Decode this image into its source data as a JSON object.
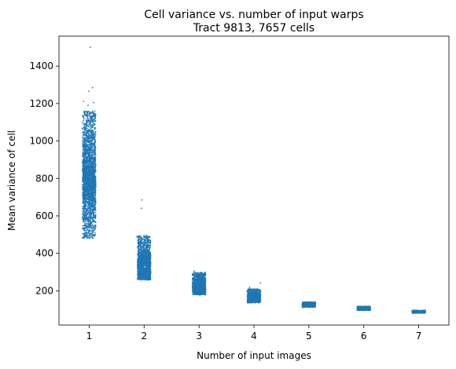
{
  "chart_data": {
    "type": "scatter",
    "title": "Cell variance vs. number of input warps",
    "subtitle": "Tract 9813, 7657 cells",
    "xlabel": "Number of input images",
    "ylabel": "Mean variance of cell",
    "x_categories": [
      "1",
      "2",
      "3",
      "4",
      "5",
      "6",
      "7"
    ],
    "x_range": [
      0.45,
      7.55
    ],
    "y_range": [
      17,
      1560
    ],
    "y_ticks": [
      200,
      400,
      600,
      800,
      1000,
      1200,
      1400
    ],
    "grid": false,
    "legend": "none",
    "point_color": "#1f77b4",
    "strip_jitter": 0.12,
    "groups": [
      {
        "x": 1,
        "count": 2450,
        "y_min": 480,
        "y_max": 1160,
        "y_center": 790,
        "y_spread": 110
      },
      {
        "x": 2,
        "count": 1550,
        "y_min": 258,
        "y_max": 495,
        "y_center": 330,
        "y_spread": 45
      },
      {
        "x": 3,
        "count": 1150,
        "y_min": 178,
        "y_max": 298,
        "y_center": 220,
        "y_spread": 25
      },
      {
        "x": 4,
        "count": 950,
        "y_min": 135,
        "y_max": 210,
        "y_center": 160,
        "y_spread": 12
      },
      {
        "x": 5,
        "count": 650,
        "y_min": 112,
        "y_max": 140,
        "y_center": 125,
        "y_spread": 5
      },
      {
        "x": 6,
        "count": 500,
        "y_min": 95,
        "y_max": 117,
        "y_center": 104,
        "y_spread": 4
      },
      {
        "x": 7,
        "count": 407,
        "y_min": 80,
        "y_max": 96,
        "y_center": 88,
        "y_spread": 3
      }
    ],
    "outliers": [
      {
        "x": 1.02,
        "y": 1500
      },
      {
        "x": 1.06,
        "y": 1285
      },
      {
        "x": 0.99,
        "y": 1265
      },
      {
        "x": 0.9,
        "y": 1212
      },
      {
        "x": 1.08,
        "y": 1205
      },
      {
        "x": 0.98,
        "y": 1190
      },
      {
        "x": 1.96,
        "y": 685
      },
      {
        "x": 1.95,
        "y": 640
      },
      {
        "x": 1.87,
        "y": 490
      },
      {
        "x": 3.92,
        "y": 218
      },
      {
        "x": 4.12,
        "y": 242
      },
      {
        "x": 2.91,
        "y": 305
      }
    ]
  }
}
